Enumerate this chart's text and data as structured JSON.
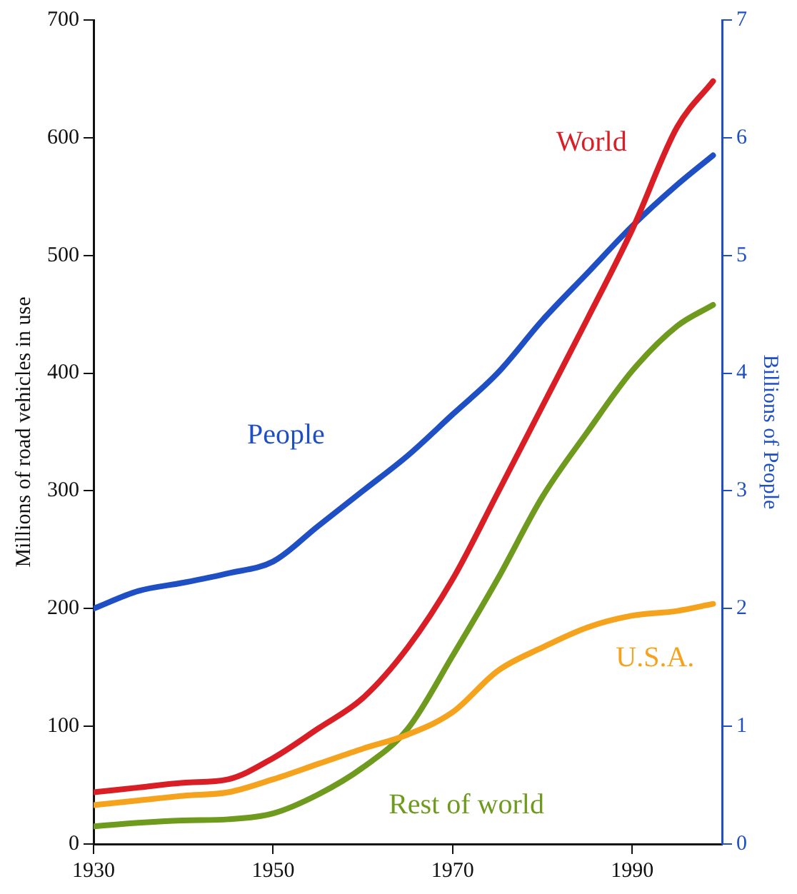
{
  "chart_data": {
    "type": "line",
    "ylabel": "Millions of road vehicles in use",
    "y2label": "Billions of People",
    "xlim": [
      1930,
      2000
    ],
    "xticks": [
      1930,
      1950,
      1970,
      1990
    ],
    "ylim": [
      0,
      700
    ],
    "yticks": [
      0,
      100,
      200,
      300,
      400,
      500,
      600,
      700
    ],
    "y2lim": [
      0,
      7
    ],
    "y2ticks": [
      0,
      1,
      2,
      3,
      4,
      5,
      6,
      7
    ],
    "grid": false,
    "legend": false,
    "marker": "none",
    "line_style": "solid",
    "series": [
      {
        "name": "World",
        "color": "#d91e26",
        "x": [
          1930,
          1935,
          1940,
          1945,
          1950,
          1955,
          1960,
          1965,
          1970,
          1975,
          1980,
          1985,
          1990,
          1995,
          1999
        ],
        "values": [
          44,
          48,
          52,
          55,
          73,
          98,
          124,
          167,
          225,
          298,
          372,
          446,
          522,
          609,
          648
        ]
      },
      {
        "name": "People",
        "color": "#1f4fc4",
        "axis": "y2",
        "x": [
          1930,
          1935,
          1940,
          1945,
          1950,
          1955,
          1960,
          1965,
          1970,
          1975,
          1980,
          1985,
          1990,
          1995,
          1999
        ],
        "values": [
          2.0,
          2.15,
          2.22,
          2.3,
          2.4,
          2.7,
          3.0,
          3.3,
          3.65,
          4.0,
          4.45,
          4.85,
          5.25,
          5.6,
          5.85
        ]
      },
      {
        "name": "U.S.A.",
        "color": "#f5a31c",
        "x": [
          1930,
          1935,
          1940,
          1945,
          1950,
          1955,
          1960,
          1965,
          1970,
          1975,
          1980,
          1985,
          1990,
          1995,
          1999
        ],
        "values": [
          33,
          37,
          41,
          44,
          55,
          68,
          81,
          93,
          112,
          147,
          167,
          184,
          194,
          198,
          204
        ]
      },
      {
        "name": "Rest of world",
        "color": "#6e9a1e",
        "x": [
          1930,
          1935,
          1940,
          1945,
          1950,
          1955,
          1960,
          1965,
          1970,
          1975,
          1980,
          1985,
          1990,
          1995,
          1999
        ],
        "values": [
          15,
          18,
          20,
          21,
          26,
          42,
          65,
          98,
          160,
          225,
          295,
          350,
          402,
          440,
          458
        ]
      }
    ]
  }
}
